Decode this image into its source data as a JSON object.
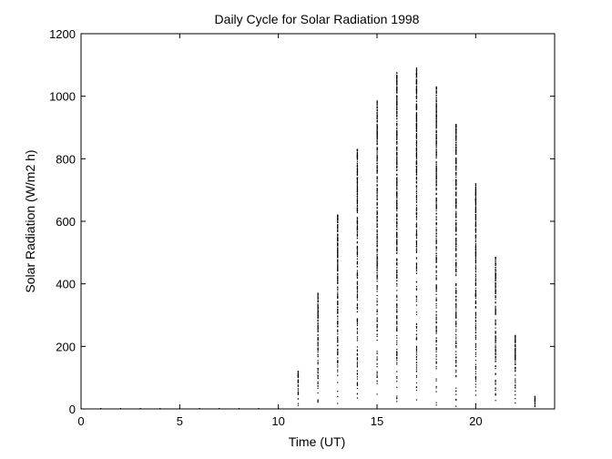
{
  "chart_data": {
    "type": "scatter",
    "title": "Daily Cycle for Solar Radiation 1998",
    "xlabel": "Time (UT)",
    "ylabel": "Solar Radiation (W/m2 h)",
    "xlim": [
      0,
      24
    ],
    "ylim": [
      0,
      1200
    ],
    "xticks": [
      0,
      5,
      10,
      15,
      20
    ],
    "yticks": [
      0,
      200,
      400,
      600,
      800,
      1000,
      1200
    ],
    "grid": false,
    "marker_color": "#000000",
    "hourly_ranges": [
      {
        "hour": 0,
        "min": 0,
        "max": 0
      },
      {
        "hour": 1,
        "min": 0,
        "max": 0
      },
      {
        "hour": 2,
        "min": 0,
        "max": 0
      },
      {
        "hour": 3,
        "min": 0,
        "max": 0
      },
      {
        "hour": 4,
        "min": 0,
        "max": 0
      },
      {
        "hour": 5,
        "min": 0,
        "max": 0
      },
      {
        "hour": 6,
        "min": 0,
        "max": 0
      },
      {
        "hour": 7,
        "min": 0,
        "max": 0
      },
      {
        "hour": 8,
        "min": 0,
        "max": 0
      },
      {
        "hour": 9,
        "min": 0,
        "max": 0
      },
      {
        "hour": 10,
        "min": 0,
        "max": 0
      },
      {
        "hour": 11,
        "min": 0,
        "max": 120
      },
      {
        "hour": 12,
        "min": 0,
        "max": 370
      },
      {
        "hour": 13,
        "min": 0,
        "max": 620
      },
      {
        "hour": 14,
        "min": 0,
        "max": 830
      },
      {
        "hour": 15,
        "min": 0,
        "max": 985
      },
      {
        "hour": 16,
        "min": 0,
        "max": 1075
      },
      {
        "hour": 17,
        "min": 0,
        "max": 1090
      },
      {
        "hour": 18,
        "min": 0,
        "max": 1030
      },
      {
        "hour": 19,
        "min": 0,
        "max": 910
      },
      {
        "hour": 20,
        "min": 0,
        "max": 720
      },
      {
        "hour": 21,
        "min": 0,
        "max": 485
      },
      {
        "hour": 22,
        "min": 0,
        "max": 235
      },
      {
        "hour": 23,
        "min": 0,
        "max": 40
      }
    ]
  }
}
